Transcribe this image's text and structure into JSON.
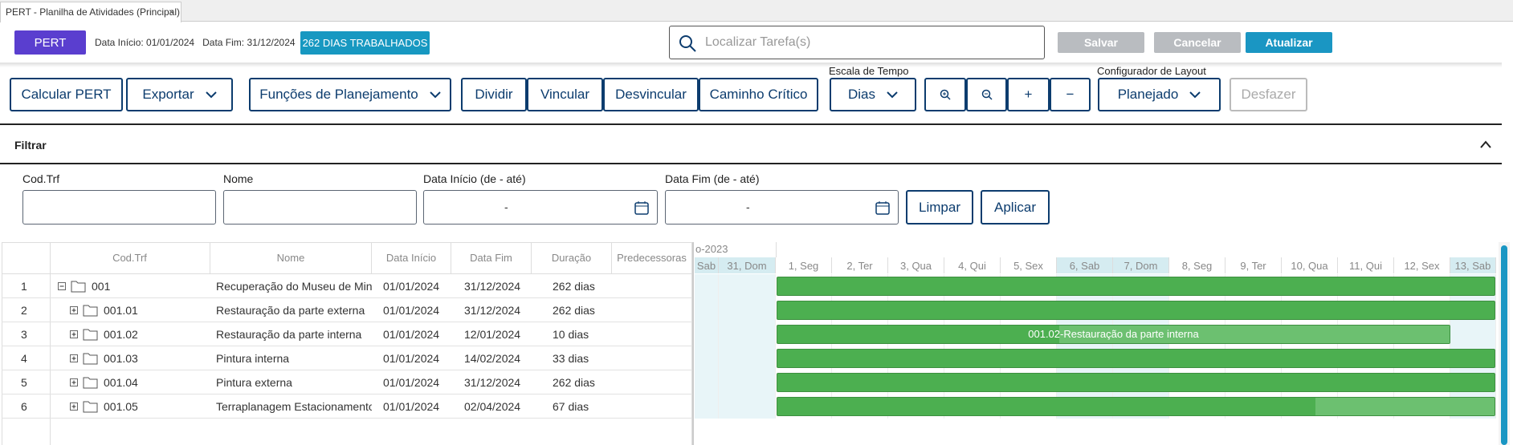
{
  "tab": "PERT - Planilha de Atividades (Principal)",
  "header": {
    "badge": "PERT",
    "start_label": "Data Início:",
    "start": "01/01/2024",
    "end_label": "Data Fim:",
    "end": "31/12/2024",
    "days": "262 DIAS TRABALHADOS",
    "search_placeholder": "Localizar Tarefa(s)",
    "buttons": [
      "Salvar",
      "Cancelar",
      "Atualizar"
    ]
  },
  "toolbar": {
    "calc": "Calcular PERT",
    "export": "Exportar",
    "functions": "Funções de Planejamento",
    "actions": [
      "Dividir",
      "Vincular",
      "Desvincular",
      "Caminho Crítico"
    ],
    "scale_label": "Escala de Tempo",
    "scale": "Dias",
    "plus": "+",
    "minus": "−",
    "layout_label": "Configurador de Layout",
    "layout": "Planejado",
    "undo": "Desfazer"
  },
  "filter": {
    "title": "Filtrar",
    "fields": [
      "Cod.Trf",
      "Nome",
      "Data Início (de - até)",
      "Data Fim (de - até)"
    ],
    "range_placeholder": "-",
    "buttons": [
      "Limpar",
      "Aplicar"
    ]
  },
  "grid": {
    "columns": [
      "Cod.Trf",
      "Nome",
      "Data Início",
      "Data Fim",
      "Duração",
      "Predecessoras"
    ],
    "rows": [
      [
        "1",
        "001",
        "Recuperação do Museu de Minera",
        "01/01/2024",
        "31/12/2024",
        "262 dias"
      ],
      [
        "2",
        "001.01",
        "Restauração da parte externa",
        "01/01/2024",
        "31/12/2024",
        "262 dias"
      ],
      [
        "3",
        "001.02",
        "Restauração da parte interna",
        "01/01/2024",
        "12/01/2024",
        "10 dias"
      ],
      [
        "4",
        "001.03",
        "Pintura interna",
        "01/01/2024",
        "14/02/2024",
        "33 dias"
      ],
      [
        "5",
        "001.04",
        "Pintura externa",
        "01/01/2024",
        "31/12/2024",
        "262 dias"
      ],
      [
        "6",
        "001.05",
        "Terraplanagem Estacionamento",
        "01/01/2024",
        "02/04/2024",
        "67 dias"
      ]
    ]
  },
  "gantt": {
    "month": "o-2023",
    "days": [
      "Sab",
      "31, Dom",
      "1, Seg",
      "2, Ter",
      "3, Qua",
      "4, Qui",
      "5, Sex",
      "6, Sab",
      "7, Dom",
      "8, Seg",
      "9, Ter",
      "10, Qua",
      "11, Qui",
      "12, Sex",
      "13, Sab"
    ],
    "bar_label": "001.02-Restauração da parte interna"
  }
}
